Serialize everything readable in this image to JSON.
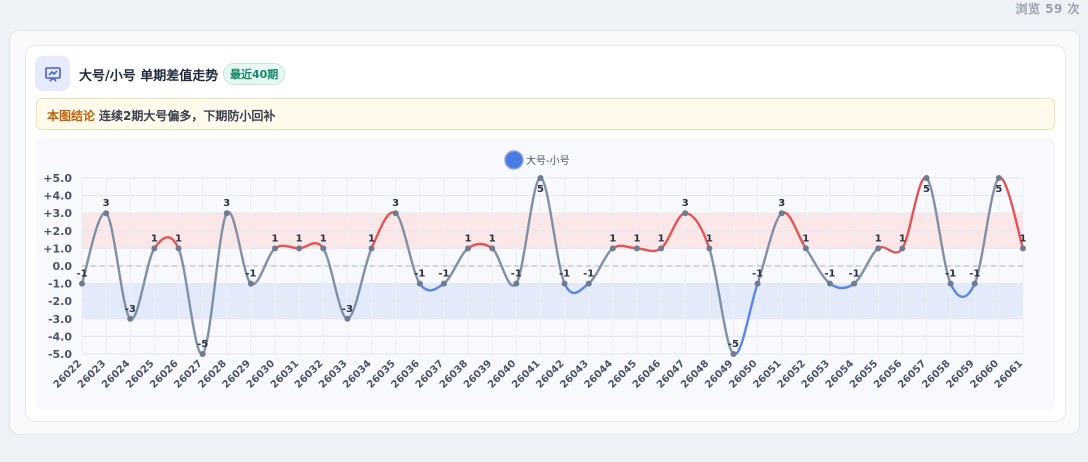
{
  "page": {
    "views_text": "浏览 59 次"
  },
  "header": {
    "icon": "chart-presentation-icon",
    "title": "大号/小号 单期差值走势",
    "badge": "最近40期"
  },
  "conclusion": {
    "label": "本图结论",
    "text": "连续2期大号偏多，下期防小回补"
  },
  "colors": {
    "line_neutral": "#8190a5",
    "line_positive": "#e25555",
    "line_negative": "#5b86e5",
    "band_positive": "#fbe6e8",
    "band_negative": "#e3ebfa",
    "legend_marker": "#4a7be4"
  },
  "chart_data": {
    "type": "line",
    "legend": [
      "大号-小号"
    ],
    "legend_position": "top-center",
    "x": [
      "26022",
      "26023",
      "26024",
      "26025",
      "26026",
      "26027",
      "26028",
      "26029",
      "26030",
      "26031",
      "26032",
      "26033",
      "26034",
      "26035",
      "26036",
      "26037",
      "26038",
      "26039",
      "26040",
      "26041",
      "26042",
      "26043",
      "26044",
      "26045",
      "26046",
      "26047",
      "26048",
      "26049",
      "26050",
      "26051",
      "26052",
      "26053",
      "26054",
      "26055",
      "26056",
      "26057",
      "26058",
      "26059",
      "26060",
      "26061"
    ],
    "series": [
      {
        "name": "大号-小号",
        "values": [
          -1,
          3,
          -3,
          1,
          1,
          -5,
          3,
          -1,
          1,
          1,
          1,
          -3,
          1,
          3,
          -1,
          -1,
          1,
          1,
          -1,
          5,
          -1,
          -1,
          1,
          1,
          1,
          3,
          1,
          -5,
          -1,
          3,
          1,
          -1,
          -1,
          1,
          1,
          5,
          -1,
          -1,
          5,
          1
        ]
      }
    ],
    "ylim": [
      -5,
      5
    ],
    "yticks": [
      "+5.0",
      "+4.0",
      "+3.0",
      "+2.0",
      "+1.0",
      "0.0",
      "-1.0",
      "-2.0",
      "-3.0",
      "-4.0",
      "-5.0"
    ],
    "bands": [
      {
        "from": 1,
        "to": 3,
        "kind": "positive"
      },
      {
        "from": -3,
        "to": -1,
        "kind": "negative"
      }
    ],
    "zero_line": "dashed",
    "grid": true
  }
}
